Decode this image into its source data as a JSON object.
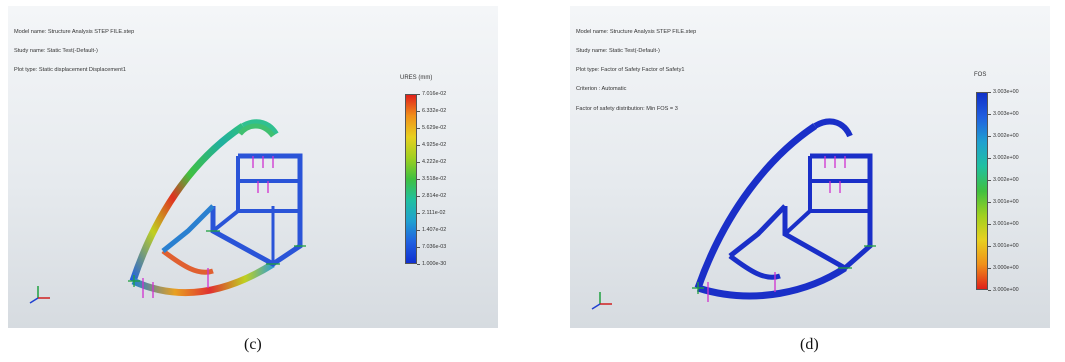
{
  "panels": [
    {
      "id": "c",
      "caption": "(c)",
      "info": [
        "Model name: Structure Analysis STEP FILE.step",
        "Study name: Static Test(-Default-)",
        "Plot type: Static displacement Displacement1"
      ],
      "legend_title": "URES (mm)",
      "ticks": [
        "7.016e-02",
        "6.332e-02",
        "5.629e-02",
        "4.925e-02",
        "4.222e-02",
        "3.518e-02",
        "2.814e-02",
        "2.111e-02",
        "1.407e-02",
        "7.036e-03",
        "1.000e-30"
      ],
      "colorbar": [
        "#e0201a",
        "#f0901a",
        "#e8d020",
        "#a0d020",
        "#40c040",
        "#20c0a0",
        "#20a0d0",
        "#2060e0",
        "#1030d0"
      ]
    },
    {
      "id": "d",
      "caption": "(d)",
      "info": [
        "Model name: Structure Analysis STEP FILE.step",
        "Study name: Static Test(-Default-)",
        "Plot type: Factor of Safety Factor of Safety1",
        "Criterion : Automatic",
        "Factor of safety distribution: Min FOS = 3"
      ],
      "legend_title": "FOS",
      "ticks": [
        "3.003e+00",
        "3.003e+00",
        "3.002e+00",
        "3.002e+00",
        "3.002e+00",
        "3.001e+00",
        "3.001e+00",
        "3.001e+00",
        "3.000e+00",
        "3.000e+00"
      ],
      "colorbar": [
        "#1030c8",
        "#2060e0",
        "#20a0d0",
        "#20c0a0",
        "#40c040",
        "#a0d020",
        "#e8d020",
        "#f0901a",
        "#e0201a"
      ]
    }
  ],
  "colors": {
    "frame_c_main": "#2a54d8",
    "frame_d_main": "#1a2fc8",
    "load_arrow": "#d030d0",
    "fixture": "#20a040"
  }
}
